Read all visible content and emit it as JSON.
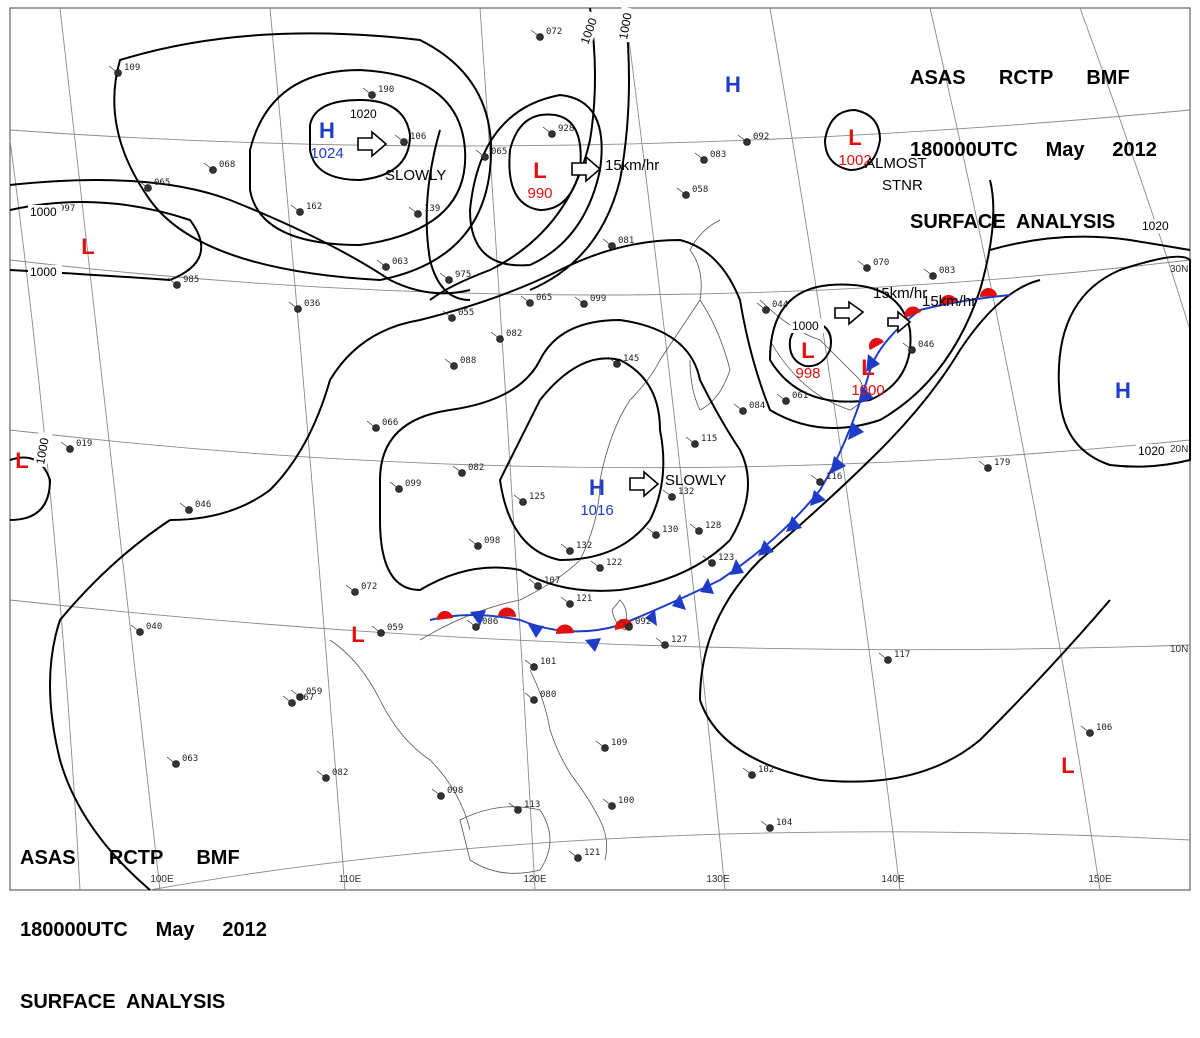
{
  "header": {
    "line1": [
      "ASAS",
      "RCTP",
      "BMF"
    ],
    "line2": [
      "180000UTC",
      "May",
      "2012"
    ],
    "line3": "SURFACE  ANALYSIS"
  },
  "graticule": {
    "longitudes": [
      "100E",
      "110E",
      "120E",
      "130E",
      "140E",
      "150E"
    ],
    "latitudes": [
      "30N",
      "20N",
      "10N"
    ]
  },
  "pressure_centers": [
    {
      "type": "H",
      "value": "1024",
      "color": "#1e3cc8"
    },
    {
      "type": "L",
      "value": "990",
      "color": "#e01010"
    },
    {
      "type": "L",
      "value": "1002",
      "color": "#e01010"
    },
    {
      "type": "L",
      "value": "998",
      "color": "#e01010"
    },
    {
      "type": "L",
      "value": "1000",
      "color": "#e01010"
    },
    {
      "type": "H",
      "value": "1016",
      "color": "#1e3cc8"
    },
    {
      "type": "H",
      "value": "",
      "color": "#1e3cc8"
    },
    {
      "type": "H",
      "value": "",
      "color": "#1e3cc8"
    },
    {
      "type": "L",
      "value": "",
      "color": "#e01010"
    },
    {
      "type": "L",
      "value": "",
      "color": "#e01010"
    },
    {
      "type": "L",
      "value": "",
      "color": "#e01010"
    },
    {
      "type": "L",
      "value": "",
      "color": "#e01010"
    }
  ],
  "motion_labels": [
    "SLOWLY",
    "15km/hr",
    "ALMOST",
    "STNR",
    "15km/hr",
    "15km/hr",
    "SLOWLY"
  ],
  "isobar_labels": [
    "1020",
    "1000",
    "1000",
    "1000",
    "1000",
    "1000",
    "1020",
    "1020",
    "1000"
  ],
  "stations": [
    {
      "num": "109"
    },
    {
      "num": "190"
    },
    {
      "num": "106"
    },
    {
      "num": "068"
    },
    {
      "num": "065"
    },
    {
      "num": "162"
    },
    {
      "num": "139"
    },
    {
      "num": "063"
    },
    {
      "num": "065"
    },
    {
      "num": "928"
    },
    {
      "num": "975"
    },
    {
      "num": "072"
    },
    {
      "num": "083"
    },
    {
      "num": "058"
    },
    {
      "num": "092"
    },
    {
      "num": "070"
    },
    {
      "num": "083"
    },
    {
      "num": "081"
    },
    {
      "num": "036"
    },
    {
      "num": "055"
    },
    {
      "num": "065"
    },
    {
      "num": "099"
    },
    {
      "num": "082"
    },
    {
      "num": "088"
    },
    {
      "num": "145"
    },
    {
      "num": "044"
    },
    {
      "num": "046"
    },
    {
      "num": "066"
    },
    {
      "num": "019"
    },
    {
      "num": "046"
    },
    {
      "num": "082"
    },
    {
      "num": "099"
    },
    {
      "num": "125"
    },
    {
      "num": "132"
    },
    {
      "num": "098"
    },
    {
      "num": "132"
    },
    {
      "num": "130"
    },
    {
      "num": "128"
    },
    {
      "num": "116"
    },
    {
      "num": "122"
    },
    {
      "num": "123"
    },
    {
      "num": "107"
    },
    {
      "num": "121"
    },
    {
      "num": "072"
    },
    {
      "num": "059"
    },
    {
      "num": "086"
    },
    {
      "num": "092"
    },
    {
      "num": "127"
    },
    {
      "num": "179"
    },
    {
      "num": "117"
    },
    {
      "num": "101"
    },
    {
      "num": "080"
    },
    {
      "num": "059"
    },
    {
      "num": "067"
    },
    {
      "num": "063"
    },
    {
      "num": "109"
    },
    {
      "num": "102"
    },
    {
      "num": "106"
    },
    {
      "num": "082"
    },
    {
      "num": "098"
    },
    {
      "num": "113"
    },
    {
      "num": "100"
    },
    {
      "num": "104"
    },
    {
      "num": "121"
    },
    {
      "num": "040"
    },
    {
      "num": "985"
    },
    {
      "num": "061"
    },
    {
      "num": "084"
    },
    {
      "num": "115"
    },
    {
      "num": "997"
    }
  ],
  "colors": {
    "high": "#1e3cc8",
    "low": "#e01010",
    "isobar": "#000000",
    "coast": "#555555",
    "grid": "#888888"
  }
}
